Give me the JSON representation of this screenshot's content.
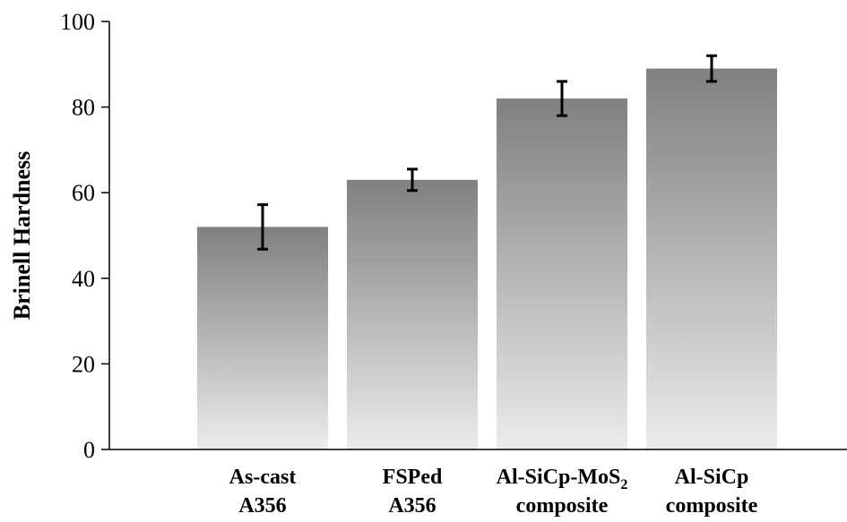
{
  "chart_data": {
    "type": "bar",
    "categories": [
      {
        "line1": "As-cast",
        "line1_sub": "",
        "line2": "A356"
      },
      {
        "line1": "FSPed",
        "line1_sub": "",
        "line2": "A356"
      },
      {
        "line1": "Al-SiCp-MoS",
        "line1_sub": "2",
        "line2": "composite"
      },
      {
        "line1": "Al-SiCp",
        "line1_sub": "",
        "line2": "composite"
      }
    ],
    "values": [
      52,
      63,
      82,
      89
    ],
    "errors": [
      5.2,
      2.5,
      4,
      3
    ],
    "ylabel": "Brinell Hardness",
    "xlabel": "",
    "title": "",
    "ylim": [
      0,
      100
    ],
    "yticks": [
      0,
      20,
      40,
      60,
      80,
      100
    ],
    "grid": false,
    "bar_gradient": [
      "#808080",
      "#ececec"
    ],
    "error_bar_color": "#000000"
  }
}
